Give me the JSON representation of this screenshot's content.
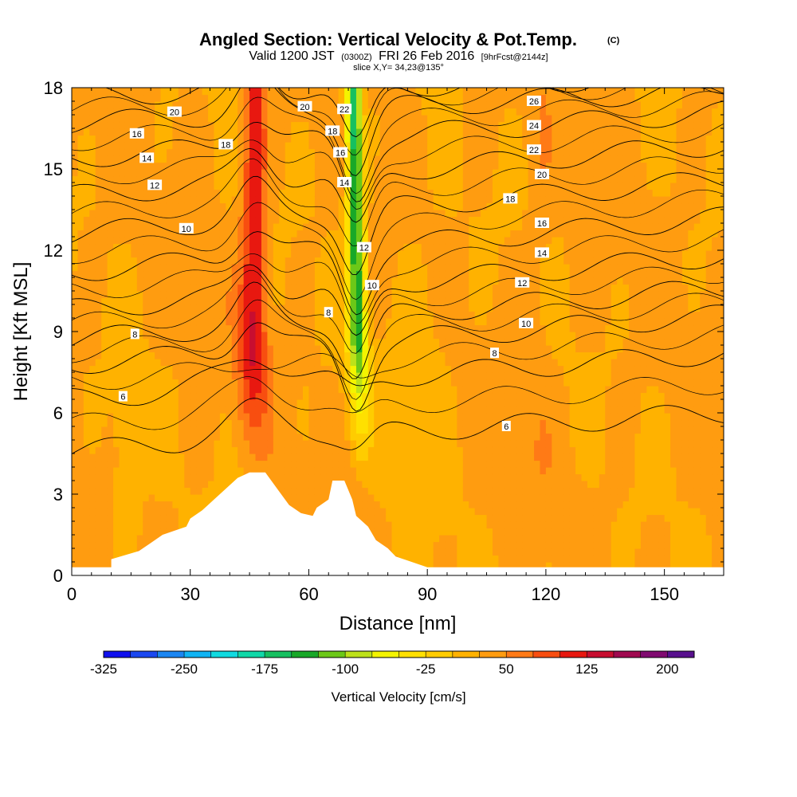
{
  "header": {
    "title": "Angled Section: Vertical Velocity & Pot.Temp.",
    "title_units": "(C)",
    "valid_prefix": "Valid 1200 JST",
    "valid_utc": "(0300Z)",
    "valid_date": "FRI 26 Feb 2016",
    "forecast": "[9hrFcst@2144z]",
    "slice": "slice X,Y= 34,23@135°"
  },
  "chart_data": {
    "type": "heatmap",
    "xlabel": "Distance [nm]",
    "ylabel": "Height [Kft MSL]",
    "xlim": [
      0,
      165
    ],
    "ylim": [
      0,
      18
    ],
    "x_ticks": [
      0,
      30,
      60,
      90,
      120,
      150
    ],
    "y_ticks": [
      0,
      3,
      6,
      9,
      12,
      15,
      18
    ],
    "terrain": {
      "x": [
        0,
        10,
        10,
        17,
        20,
        23,
        29,
        30,
        33,
        36,
        39,
        42,
        45,
        49,
        52,
        55,
        58,
        61,
        62,
        65,
        66,
        69,
        71,
        72,
        75,
        77,
        80,
        82,
        86,
        90,
        90,
        165
      ],
      "height": [
        0.3,
        0.3,
        0.6,
        0.9,
        1.2,
        1.5,
        1.8,
        2.1,
        2.4,
        2.8,
        3.2,
        3.6,
        3.8,
        3.8,
        3.2,
        2.6,
        2.3,
        2.2,
        2.5,
        2.8,
        3.5,
        3.5,
        2.8,
        2.2,
        1.8,
        1.3,
        1.0,
        0.7,
        0.5,
        0.3,
        0.3,
        0.3
      ]
    },
    "updraft_cores": [
      {
        "x": 46,
        "top_height": 18,
        "base_height": 4,
        "peak_velocity": 125
      },
      {
        "x": 118,
        "top_height": 18,
        "base_height": 0.5,
        "peak_velocity": 40
      }
    ],
    "downdraft_cores": [
      {
        "x": 72,
        "top_height": 18,
        "base_height": 3.5,
        "peak_velocity": -175
      }
    ],
    "theta_contours": [
      {
        "value": 6,
        "left": 4.6,
        "right": 6.0
      },
      {
        "value": 8,
        "left": 6.5,
        "right": 8.2
      },
      {
        "value": 10,
        "left": 7.8,
        "right": 9.6
      },
      {
        "value": 12,
        "left": 8.7,
        "right": 10.6
      },
      {
        "value": 14,
        "left": 9.8,
        "right": 11.8
      },
      {
        "value": 16,
        "left": 11.2,
        "right": 13.2
      },
      {
        "value": 18,
        "left": 12.6,
        "right": 14.6
      },
      {
        "value": 20,
        "left": 14.0,
        "right": 15.9
      },
      {
        "value": 22,
        "left": 15.4,
        "right": 17.1
      },
      {
        "value": 24,
        "left": 16.7,
        "right": 17.9
      },
      {
        "value": 26,
        "left": 17.7,
        "right": 18.4
      }
    ],
    "contour_labels": [
      {
        "text": "6",
        "x": 13,
        "y": 6.6
      },
      {
        "text": "8",
        "x": 16,
        "y": 8.9
      },
      {
        "text": "10",
        "x": 29,
        "y": 12.8
      },
      {
        "text": "12",
        "x": 21,
        "y": 14.4
      },
      {
        "text": "14",
        "x": 19,
        "y": 15.4
      },
      {
        "text": "16",
        "x": 16.5,
        "y": 16.3
      },
      {
        "text": "20",
        "x": 26,
        "y": 17.1
      },
      {
        "text": "18",
        "x": 39,
        "y": 15.9
      },
      {
        "text": "20",
        "x": 59,
        "y": 17.3
      },
      {
        "text": "22",
        "x": 69,
        "y": 17.2
      },
      {
        "text": "18",
        "x": 66,
        "y": 16.4
      },
      {
        "text": "16",
        "x": 68,
        "y": 15.6
      },
      {
        "text": "14",
        "x": 69,
        "y": 14.5
      },
      {
        "text": "12",
        "x": 74,
        "y": 12.1
      },
      {
        "text": "10",
        "x": 76,
        "y": 10.7
      },
      {
        "text": "8",
        "x": 65,
        "y": 9.7
      },
      {
        "text": "26",
        "x": 117,
        "y": 17.5
      },
      {
        "text": "24",
        "x": 117,
        "y": 16.6
      },
      {
        "text": "22",
        "x": 117,
        "y": 15.7
      },
      {
        "text": "20",
        "x": 119,
        "y": 14.8
      },
      {
        "text": "18",
        "x": 111,
        "y": 13.9
      },
      {
        "text": "16",
        "x": 119,
        "y": 13.0
      },
      {
        "text": "14",
        "x": 119,
        "y": 11.9
      },
      {
        "text": "12",
        "x": 114,
        "y": 10.8
      },
      {
        "text": "10",
        "x": 115,
        "y": 9.3
      },
      {
        "text": "8",
        "x": 107,
        "y": 8.2
      },
      {
        "text": "6",
        "x": 110,
        "y": 5.5
      }
    ],
    "colorbar": {
      "label": "Vertical Velocity [cm/s]",
      "min": -325,
      "max": 225,
      "step": 25,
      "tick_values": [
        -325,
        -250,
        -175,
        -100,
        -25,
        50,
        125,
        200
      ],
      "tick_labels": [
        "-325",
        "-250",
        "-175",
        "-100",
        "-25",
        "50",
        "125",
        "200"
      ],
      "colors": [
        "#1010ee",
        "#1b48f0",
        "#1b86f2",
        "#10b4f4",
        "#10dae0",
        "#10d8a8",
        "#16c060",
        "#18a828",
        "#6cc818",
        "#bde21a",
        "#f4f400",
        "#ffe000",
        "#ffcc00",
        "#ffb200",
        "#ff9c10",
        "#ff7a16",
        "#f84e10",
        "#e81810",
        "#c80e30",
        "#a00a50",
        "#800a70",
        "#58108e"
      ]
    }
  }
}
